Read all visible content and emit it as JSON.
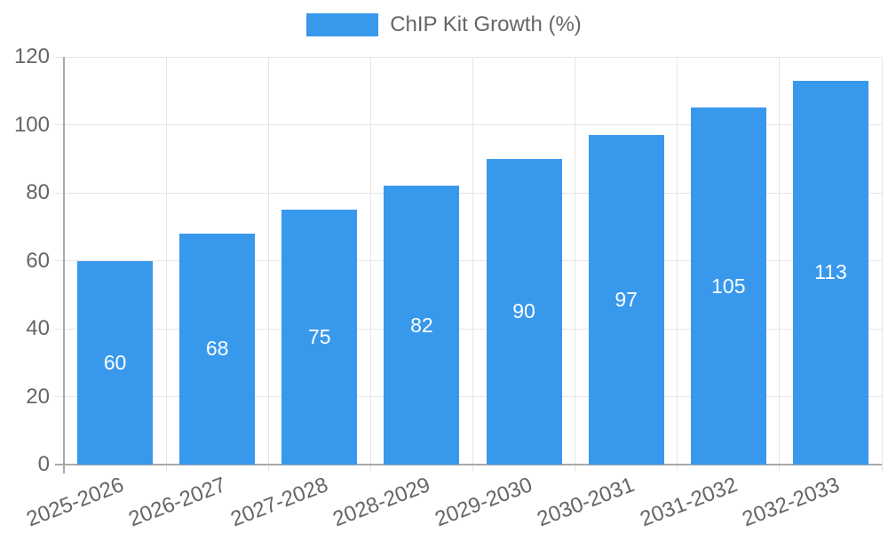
{
  "chart_data": {
    "type": "bar",
    "title": "ChIP Kit Growth (%)",
    "legend_label": "ChIP Kit Growth (%)",
    "legend_position": "top",
    "categories": [
      "2025-2026",
      "2026-2027",
      "2027-2028",
      "2028-2029",
      "2029-2030",
      "2030-2031",
      "2031-2032",
      "2032-2033"
    ],
    "values": [
      60,
      68,
      75,
      82,
      90,
      97,
      105,
      113
    ],
    "xlabel": "",
    "ylabel": "",
    "ylim": [
      0,
      120
    ],
    "yticks": [
      0,
      20,
      40,
      60,
      80,
      100,
      120
    ],
    "grid": true,
    "x_label_rotation_deg": -21,
    "bar_color": "#3899ec",
    "value_label_color": "#ffffff",
    "tick_text_color": "#666666",
    "grid_color": "#e5e5e5",
    "axis_color": "#a9a9a9"
  }
}
